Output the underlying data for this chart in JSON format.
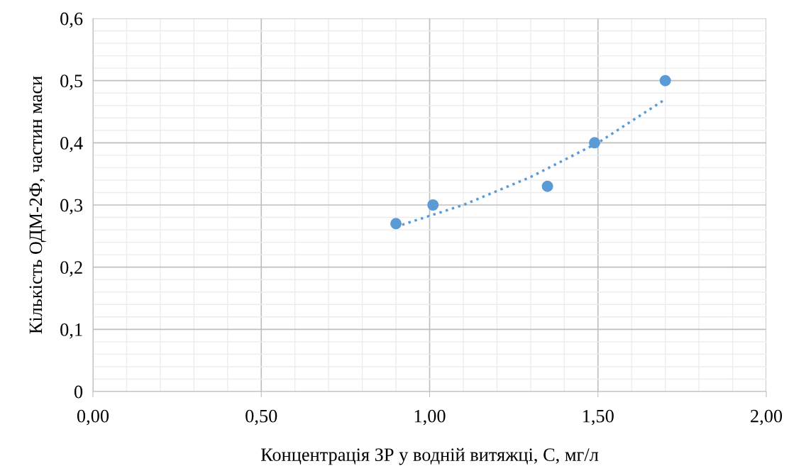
{
  "chart_data": {
    "type": "scatter",
    "xlabel": "Концентрація ЗР у водній витяжці, С, мг/л",
    "ylabel": "Кількість ОДМ-2Ф, частин маси",
    "series": [
      {
        "color": "#5b9bd5",
        "marker": "circle",
        "x": [
          0.9,
          1.01,
          1.35,
          1.49,
          1.7
        ],
        "values": [
          0.27,
          0.3,
          0.33,
          0.4,
          0.5
        ]
      },
      {
        "type": "line",
        "color": "#5b9bd5",
        "line_style": "dotted",
        "x": [
          0.9,
          1.1,
          1.3,
          1.5,
          1.7
        ],
        "values": [
          0.265,
          0.3,
          0.345,
          0.4,
          0.47
        ]
      }
    ],
    "xlim": [
      0,
      2
    ],
    "xticks": [
      {
        "value": 0,
        "label": "0,00"
      },
      {
        "value": 0.5,
        "label": "0,50"
      },
      {
        "value": 1,
        "label": "1,00"
      },
      {
        "value": 1.5,
        "label": "1,50"
      },
      {
        "value": 2,
        "label": "2,00"
      }
    ],
    "ylim": [
      0,
      0.6
    ],
    "yticks": [
      0,
      {
        "value": 0.1,
        "label": "0,1"
      },
      {
        "value": 0.2,
        "label": "0,2"
      },
      {
        "value": 0.3,
        "label": "0,3"
      },
      {
        "value": 0.4,
        "label": "0,4"
      },
      {
        "value": 0.5,
        "label": "0,5"
      },
      {
        "value": 0.6,
        "label": "0,6"
      }
    ],
    "grid": true
  }
}
